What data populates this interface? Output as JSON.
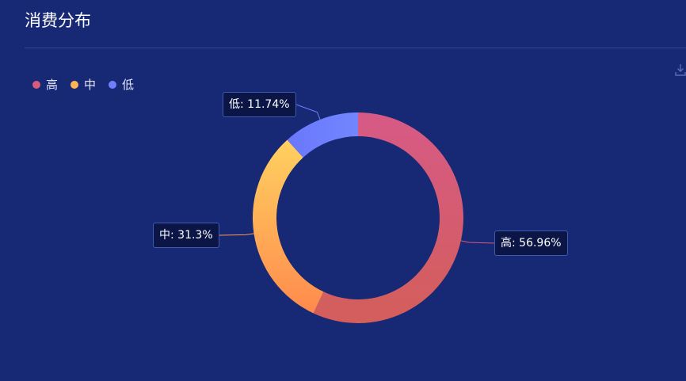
{
  "header": {
    "title": "消费分布",
    "download_icon": "download-icon"
  },
  "colors": {
    "background": "#172874",
    "high": "#d65b7c",
    "mid": "#ffbf59",
    "low": "#6f7ffd",
    "label_bg": "#0b1647"
  },
  "legend": {
    "placement": "top-left",
    "items": [
      {
        "label": "高",
        "color": "#d65b7c"
      },
      {
        "label": "中",
        "color": "#ffb355"
      },
      {
        "label": "低",
        "color": "#6f7ffd"
      }
    ]
  },
  "chart_data": {
    "type": "pie",
    "variant": "donut",
    "title": "消费分布",
    "slices": [
      {
        "name": "高",
        "value": 56.96,
        "label": "高: 56.96%"
      },
      {
        "name": "中",
        "value": 31.3,
        "label": "中: 31.3%"
      },
      {
        "name": "低",
        "value": 11.74,
        "label": "低: 11.74%"
      }
    ]
  }
}
